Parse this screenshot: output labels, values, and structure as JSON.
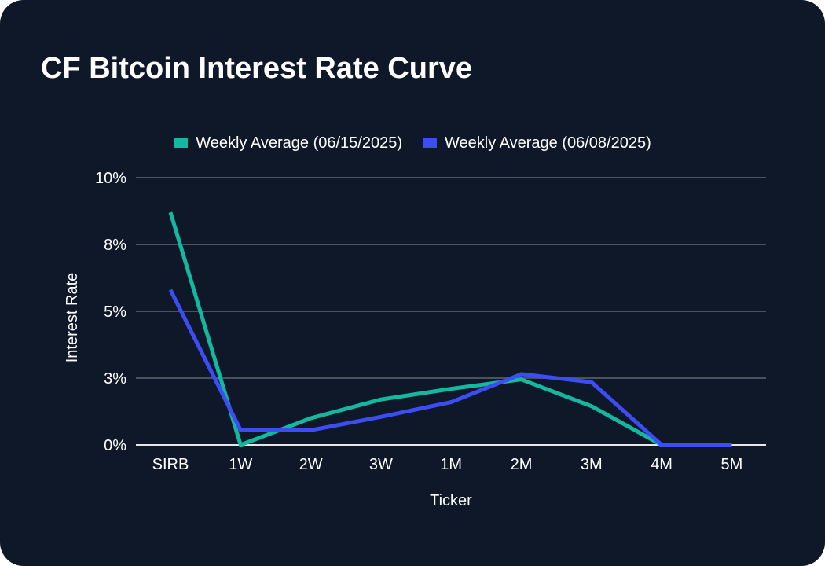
{
  "title": "CF Bitcoin Interest Rate Curve",
  "colors": {
    "background": "#0f1829",
    "grid": "#4a5260",
    "baseline": "#e6e6e6",
    "series_1": "#14b8a0",
    "series_2": "#3d4df5"
  },
  "chart_data": {
    "type": "line",
    "title": "CF Bitcoin Interest Rate Curve",
    "xlabel": "Ticker",
    "ylabel": "Interest Rate",
    "categories": [
      "SIRB",
      "1W",
      "2W",
      "3W",
      "1M",
      "2M",
      "3M",
      "4M",
      "5M"
    ],
    "y_ticks": [
      0,
      2.5,
      5,
      7.5,
      10
    ],
    "y_tick_labels": [
      "0%",
      "3%",
      "5%",
      "8%",
      "10%"
    ],
    "ylim": [
      0,
      10
    ],
    "grid": true,
    "legend_position": "top-center",
    "series": [
      {
        "name": "Weekly Average (06/15/2025)",
        "color": "#14b8a0",
        "values": [
          8.7,
          0.0,
          1.0,
          1.7,
          2.1,
          2.45,
          1.45,
          0.0,
          0.0
        ]
      },
      {
        "name": "Weekly Average (06/08/2025)",
        "color": "#3d4df5",
        "values": [
          5.8,
          0.55,
          0.55,
          1.05,
          1.6,
          2.65,
          2.35,
          0.0,
          0.0
        ]
      }
    ]
  }
}
